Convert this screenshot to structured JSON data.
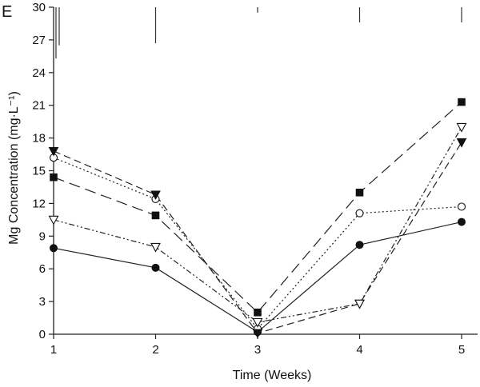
{
  "chart_data": {
    "type": "line",
    "panel_label": "E",
    "xlabel": "Time (Weeks)",
    "ylabel": "Mg Concentration (mg·L⁻¹)",
    "x": [
      1,
      2,
      3,
      4,
      5
    ],
    "x_ticks": [
      "1",
      "2",
      "3",
      "4",
      "5"
    ],
    "xlim": [
      1,
      5.2
    ],
    "ylim": [
      0,
      30
    ],
    "y_ticks": [
      "0",
      "3",
      "6",
      "9",
      "12",
      "15",
      "18",
      "21",
      "24",
      "27",
      "30"
    ],
    "grid": false,
    "legend": "none",
    "series": [
      {
        "name": "filled circles",
        "marker": "circle-filled",
        "line": "solid",
        "values": [
          7.9,
          6.1,
          0.2,
          8.2,
          10.3
        ]
      },
      {
        "name": "filled squares",
        "marker": "square-filled",
        "line": "long-dash",
        "values": [
          14.4,
          10.9,
          2.0,
          13.0,
          21.3
        ]
      },
      {
        "name": "open circles",
        "marker": "circle-open",
        "line": "dotted",
        "values": [
          16.2,
          12.4,
          0.5,
          11.1,
          11.7
        ]
      },
      {
        "name": "filled down-triangles",
        "marker": "triangle-down-filled",
        "line": "dashed",
        "values": [
          16.8,
          12.8,
          0.1,
          2.8,
          17.6
        ]
      },
      {
        "name": "open down-triangles",
        "marker": "triangle-down-open",
        "line": "dash-dot-dot",
        "values": [
          10.5,
          8.0,
          1.1,
          2.8,
          19.0
        ]
      }
    ],
    "error_bars": [
      {
        "x": 1,
        "low": 25.3,
        "high": 30
      },
      {
        "x": 1,
        "low": 26.5,
        "high": 30
      },
      {
        "x": 2,
        "low": 26.7,
        "high": 30
      },
      {
        "x": 3,
        "low": 29.5,
        "high": 30
      },
      {
        "x": 4,
        "low": 28.6,
        "high": 30
      },
      {
        "x": 5,
        "low": 28.6,
        "high": 30
      }
    ]
  }
}
